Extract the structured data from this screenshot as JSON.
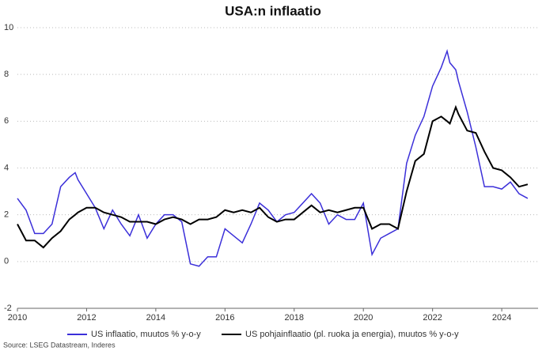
{
  "chart_data": {
    "type": "line",
    "title": "USA:n inflaatio",
    "source": "Source: LSEG Datastream, Inderes",
    "x": [
      2010.0,
      2010.25,
      2010.5,
      2010.75,
      2011.0,
      2011.25,
      2011.5,
      2011.67,
      2011.75,
      2012.0,
      2012.25,
      2012.5,
      2012.75,
      2013.0,
      2013.25,
      2013.5,
      2013.75,
      2014.0,
      2014.25,
      2014.5,
      2014.75,
      2015.0,
      2015.25,
      2015.5,
      2015.75,
      2016.0,
      2016.25,
      2016.5,
      2016.75,
      2017.0,
      2017.25,
      2017.5,
      2017.75,
      2018.0,
      2018.25,
      2018.5,
      2018.75,
      2019.0,
      2019.25,
      2019.5,
      2019.75,
      2020.0,
      2020.25,
      2020.5,
      2020.75,
      2021.0,
      2021.25,
      2021.5,
      2021.75,
      2022.0,
      2022.25,
      2022.42,
      2022.5,
      2022.67,
      2022.75,
      2023.0,
      2023.25,
      2023.5,
      2023.75,
      2024.0,
      2024.25,
      2024.5,
      2024.75
    ],
    "series": [
      {
        "name": "US inflaatio, muutos % y-o-y",
        "color": "#3b2fd9",
        "values": [
          2.7,
          2.2,
          1.2,
          1.2,
          1.6,
          3.2,
          3.6,
          3.8,
          3.5,
          2.9,
          2.3,
          1.4,
          2.2,
          1.6,
          1.1,
          2.0,
          1.0,
          1.6,
          2.0,
          2.0,
          1.7,
          -0.1,
          -0.2,
          0.2,
          0.2,
          1.4,
          1.1,
          0.8,
          1.6,
          2.5,
          2.2,
          1.7,
          2.0,
          2.1,
          2.5,
          2.9,
          2.5,
          1.6,
          2.0,
          1.8,
          1.8,
          2.5,
          0.3,
          1.0,
          1.2,
          1.4,
          4.2,
          5.4,
          6.2,
          7.5,
          8.3,
          9.0,
          8.5,
          8.2,
          7.7,
          6.4,
          4.9,
          3.2,
          3.2,
          3.1,
          3.4,
          2.9,
          2.7
        ]
      },
      {
        "name": "US pohjainflaatio (pl. ruoka ja energia), muutos % y-o-y",
        "color": "#000000",
        "values": [
          1.6,
          0.9,
          0.9,
          0.6,
          1.0,
          1.3,
          1.8,
          2.0,
          2.1,
          2.3,
          2.3,
          2.1,
          2.0,
          1.9,
          1.7,
          1.7,
          1.7,
          1.6,
          1.8,
          1.9,
          1.8,
          1.6,
          1.8,
          1.8,
          1.9,
          2.2,
          2.1,
          2.2,
          2.1,
          2.3,
          1.9,
          1.7,
          1.8,
          1.8,
          2.1,
          2.4,
          2.1,
          2.2,
          2.1,
          2.2,
          2.3,
          2.3,
          1.4,
          1.6,
          1.6,
          1.4,
          3.0,
          4.3,
          4.6,
          6.0,
          6.2,
          6.0,
          5.9,
          6.6,
          6.3,
          5.6,
          5.5,
          4.7,
          4.0,
          3.9,
          3.6,
          3.2,
          3.3
        ]
      }
    ],
    "xlim": [
      2010,
      2025.05
    ],
    "xticks": [
      2010,
      2012,
      2014,
      2016,
      2018,
      2020,
      2022,
      2024
    ],
    "ylim": [
      -2,
      10
    ],
    "yticks": [
      -2,
      0,
      2,
      4,
      6,
      8,
      10
    ],
    "grid": true
  }
}
